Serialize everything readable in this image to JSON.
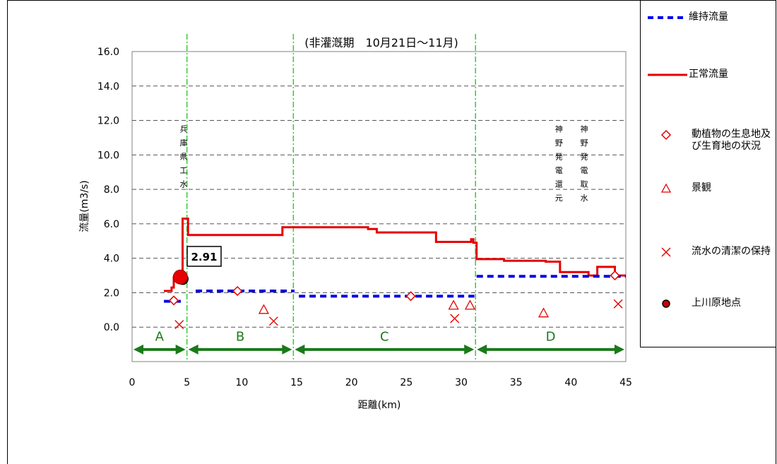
{
  "chart_data": {
    "type": "line",
    "title": "(非灌漑期　10月21日～11月)",
    "xlabel": "距離(km)",
    "ylabel": "流量(m3/s)",
    "xlim": [
      0,
      45
    ],
    "ylim": [
      -2,
      16
    ],
    "x_ticks": [
      "0",
      "5",
      "10",
      "15",
      "20",
      "25",
      "30",
      "35",
      "40",
      "45"
    ],
    "y_ticks": [
      "0.0",
      "2.0",
      "4.0",
      "6.0",
      "8.0",
      "10.0",
      "12.0",
      "14.0",
      "16.0"
    ],
    "grid": "horizontal dashed",
    "series": [
      {
        "name": "正常流量",
        "style": "solid",
        "color": "#e60000",
        "points": [
          [
            2.9,
            2.1
          ],
          [
            3.6,
            2.1
          ],
          [
            3.6,
            2.3
          ],
          [
            3.8,
            2.3
          ],
          [
            3.8,
            2.9
          ],
          [
            4.6,
            2.9
          ],
          [
            4.6,
            6.3
          ],
          [
            5.1,
            6.3
          ],
          [
            5.1,
            5.35
          ],
          [
            13.7,
            5.35
          ],
          [
            13.7,
            5.8
          ],
          [
            21.5,
            5.8
          ],
          [
            21.5,
            5.7
          ],
          [
            22.3,
            5.7
          ],
          [
            22.3,
            5.5
          ],
          [
            27.7,
            5.5
          ],
          [
            27.7,
            4.95
          ],
          [
            30.9,
            4.95
          ],
          [
            30.9,
            5.1
          ],
          [
            31.1,
            5.1
          ],
          [
            31.1,
            4.9
          ],
          [
            31.4,
            4.9
          ],
          [
            31.4,
            3.95
          ],
          [
            33.9,
            3.95
          ],
          [
            33.9,
            3.85
          ],
          [
            37.7,
            3.85
          ],
          [
            37.7,
            3.8
          ],
          [
            39.0,
            3.8
          ],
          [
            39.0,
            3.2
          ],
          [
            41.6,
            3.2
          ],
          [
            41.6,
            3.0
          ],
          [
            42.4,
            3.0
          ],
          [
            42.4,
            3.5
          ],
          [
            44.0,
            3.5
          ],
          [
            44.0,
            3.0
          ],
          [
            45.0,
            3.0
          ]
        ]
      },
      {
        "name": "維持流量",
        "style": "dashed",
        "color": "#0000e6",
        "segments": [
          [
            [
              2.9,
              1.5
            ],
            [
              4.6,
              1.5
            ]
          ],
          [
            [
              5.8,
              2.1
            ],
            [
              14.8,
              2.1
            ]
          ],
          [
            [
              15.2,
              1.8
            ],
            [
              31.2,
              1.8
            ]
          ],
          [
            [
              31.4,
              2.95
            ],
            [
              45.0,
              2.95
            ]
          ]
        ]
      },
      {
        "name": "動植物の生息地及び生育地の状況",
        "marker": "diamond",
        "color": "#e60000",
        "points": [
          [
            3.8,
            1.55
          ],
          [
            9.6,
            2.1
          ],
          [
            25.4,
            1.8
          ],
          [
            44.0,
            3.0
          ]
        ]
      },
      {
        "name": "景観",
        "marker": "triangle",
        "color": "#e60000",
        "points": [
          [
            12.0,
            1.0
          ],
          [
            29.3,
            1.25
          ],
          [
            30.8,
            1.25
          ],
          [
            37.5,
            0.8
          ]
        ]
      },
      {
        "name": "流水の清潔の保持",
        "marker": "x",
        "color": "#e60000",
        "points": [
          [
            4.3,
            0.15
          ],
          [
            12.9,
            0.35
          ],
          [
            29.4,
            0.5
          ],
          [
            44.3,
            1.35
          ]
        ]
      },
      {
        "name": "上川原地点",
        "marker": "circle",
        "color": "#000000",
        "points": [
          [
            4.6,
            2.8
          ]
        ]
      }
    ],
    "highlight": {
      "x": 4.4,
      "y": 2.91,
      "label": "2.91",
      "color": "#e60000"
    },
    "vertical_lines": [
      5.0,
      14.7,
      31.3
    ],
    "reaches": [
      {
        "label": "A",
        "from": 0.0,
        "to": 5.0
      },
      {
        "label": "B",
        "from": 5.0,
        "to": 14.7
      },
      {
        "label": "C",
        "from": 14.7,
        "to": 31.3
      },
      {
        "label": "D",
        "from": 31.3,
        "to": 45.0
      }
    ],
    "annotations": [
      {
        "text": "兵庫県工水",
        "x": 4.7,
        "y_top": 11.75
      },
      {
        "text": "神野発電還元",
        "x": 38.9,
        "y_top": 11.75
      },
      {
        "text": "神野発電取水",
        "x": 41.2,
        "y_top": 11.75
      }
    ],
    "legend": {
      "position": "right",
      "items": [
        {
          "label": "維持流量",
          "symbol": "dashed-line",
          "color": "#0000e6"
        },
        {
          "label": "正常流量",
          "symbol": "solid-line",
          "color": "#e60000"
        },
        {
          "label": "動植物の生息地及び生育地の状況",
          "symbol": "diamond",
          "color": "#e60000"
        },
        {
          "label": "景観",
          "symbol": "triangle",
          "color": "#e60000"
        },
        {
          "label": "流水の清潔の保持",
          "symbol": "x",
          "color": "#e60000"
        },
        {
          "label": "上川原地点",
          "symbol": "circle",
          "color": "#000000"
        }
      ]
    }
  }
}
